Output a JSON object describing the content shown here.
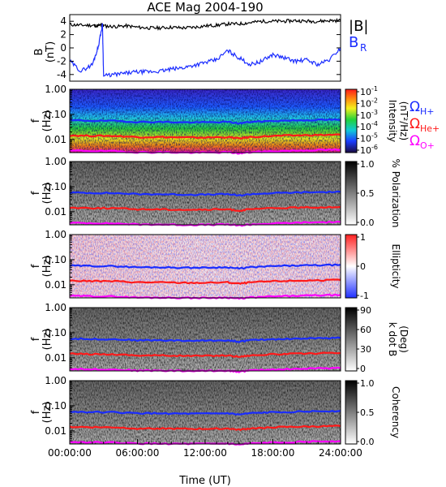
{
  "title": "ACE Mag 2004-190",
  "colors": {
    "b_total": "#000000",
    "b_r": "#1a2cff",
    "omega_h": "#1a2cff",
    "omega_he": "#ff1a1a",
    "omega_o": "#ff00ff"
  },
  "time_axis": {
    "label": "Time (UT)",
    "ticks": [
      "00:00:00",
      "06:00:00",
      "12:00:00",
      "18:00:00",
      "24:00:00"
    ],
    "range_hours": [
      0,
      24
    ]
  },
  "gyro_labels": {
    "h": {
      "main": "Ω",
      "sub": "H+"
    },
    "he": {
      "main": "Ω",
      "sub": "He+"
    },
    "o": {
      "main": "Ω",
      "sub": "O+"
    }
  },
  "freq_axis": {
    "ticks": [
      "1.00",
      "0.10",
      "0.01"
    ],
    "range_hz": [
      0.003,
      1.0
    ],
    "scale": "log",
    "ylabel_main": "f",
    "ylabel_unit": "(Hz)"
  },
  "mag_panel": {
    "ylabel_main": "B",
    "ylabel_unit": "(nT)",
    "ticks": [
      "4",
      "2",
      "0",
      "-2",
      "-4"
    ],
    "ylim": [
      -5,
      5
    ],
    "legend_total": "|B|",
    "legend_r_main": "B",
    "legend_r_sub": "R"
  },
  "spectral_panels": [
    {
      "id": "intensity",
      "colorbar_ticks": [
        {
          "base": "10",
          "exp": "-1"
        },
        {
          "base": "10",
          "exp": "-2"
        },
        {
          "base": "10",
          "exp": "-3"
        },
        {
          "base": "10",
          "exp": "-4"
        },
        {
          "base": "10",
          "exp": "-5"
        },
        {
          "base": "10",
          "exp": "-6"
        }
      ],
      "cb_label_line1": "Intensity",
      "cb_label_line2": "(nT²/Hz)"
    },
    {
      "id": "polarization",
      "colorbar_ticks": [
        "1.0",
        "0.5",
        "0.0"
      ],
      "cb_label_line1": "% Polarization",
      "cb_label_line2": ""
    },
    {
      "id": "ellipticity",
      "colorbar_ticks": [
        "1",
        "0",
        "-1"
      ],
      "cb_label_line1": "Ellipticity",
      "cb_label_line2": ""
    },
    {
      "id": "kdotb",
      "colorbar_ticks": [
        "90",
        "60",
        "30",
        "0"
      ],
      "cb_label_line1": "k dot B",
      "cb_label_line2": "(Deg)"
    },
    {
      "id": "coherency",
      "colorbar_ticks": [
        "1.0",
        "0.5",
        "0.0"
      ],
      "cb_label_line1": "Coherency",
      "cb_label_line2": ""
    }
  ],
  "chart_data": {
    "type": "line",
    "title": "ACE Mag 2004-190",
    "xlabel": "Time (UT)",
    "x_unit": "hours",
    "xlim": [
      0,
      24
    ],
    "ylabel": "B (nT)",
    "ylim": [
      -5,
      5
    ],
    "x": [
      0,
      1,
      2,
      2.5,
      2.9,
      3.0,
      4,
      5,
      6,
      7,
      8,
      9,
      10,
      11,
      12,
      13,
      14,
      15,
      16,
      17,
      18,
      19,
      20,
      21,
      22,
      23,
      24
    ],
    "series": [
      {
        "name": "|B|",
        "values": [
          3.5,
          3.4,
          3.4,
          3.3,
          3.5,
          3.3,
          3.2,
          3.3,
          3.1,
          3.0,
          3.0,
          3.1,
          3.0,
          3.1,
          3.3,
          3.4,
          3.6,
          3.6,
          3.8,
          4.0,
          4.0,
          4.0,
          4.1,
          4.0,
          4.0,
          4.1,
          4.1
        ]
      },
      {
        "name": "B_R",
        "values": [
          -2.0,
          -3.5,
          -2.5,
          0.0,
          3.5,
          -4.2,
          -4.0,
          -3.8,
          -3.6,
          -3.6,
          -3.5,
          -3.2,
          -3.0,
          -2.6,
          -2.2,
          -1.8,
          -0.4,
          -1.5,
          -2.5,
          -2.0,
          -1.0,
          -1.5,
          -2.0,
          -1.8,
          -2.5,
          -1.8,
          0.0
        ]
      }
    ],
    "gyrofrequency_lines_hz": {
      "x": [
        0,
        2,
        4,
        6,
        8,
        10,
        12,
        14,
        15,
        16,
        18,
        20,
        22,
        24
      ],
      "H+": [
        0.058,
        0.056,
        0.055,
        0.05,
        0.05,
        0.048,
        0.048,
        0.05,
        0.044,
        0.05,
        0.055,
        0.058,
        0.06,
        0.062
      ],
      "He+": [
        0.0145,
        0.014,
        0.0138,
        0.0125,
        0.0125,
        0.012,
        0.012,
        0.0125,
        0.011,
        0.0125,
        0.0138,
        0.0145,
        0.015,
        0.0155
      ],
      "O+": [
        0.0036,
        0.0035,
        0.0034,
        0.0031,
        0.0031,
        0.003,
        0.003,
        0.0031,
        0.0028,
        0.0031,
        0.0034,
        0.0036,
        0.0038,
        0.0039
      ]
    }
  }
}
